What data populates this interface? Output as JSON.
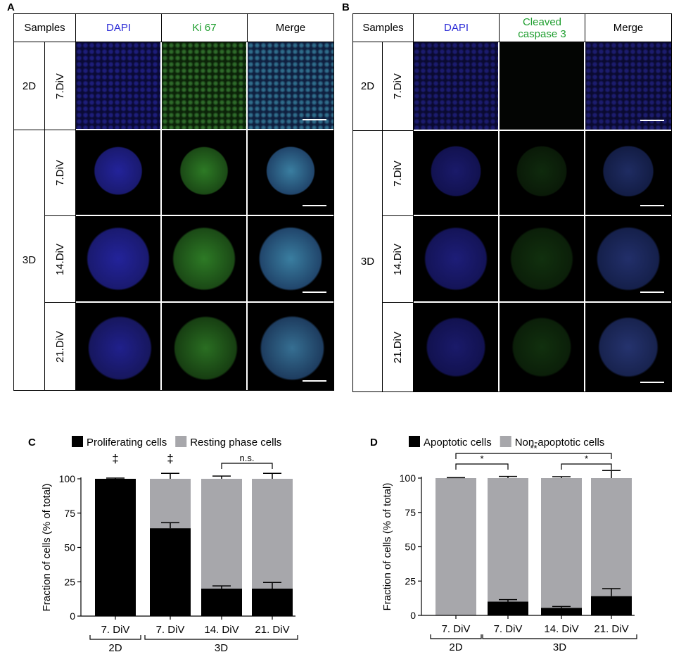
{
  "panelA": {
    "label": "A",
    "headers": {
      "samples": "Samples",
      "dapi": "DAPI",
      "stain": "Ki 67",
      "merge": "Merge"
    },
    "group2d": "2D",
    "group3d": "3D",
    "rows": [
      "7.DiV",
      "7.DiV",
      "14.DiV",
      "21.DiV"
    ]
  },
  "panelB": {
    "label": "B",
    "headers": {
      "samples": "Samples",
      "dapi": "DAPI",
      "stain_line1": "Cleaved",
      "stain_line2": "caspase 3",
      "merge": "Merge"
    },
    "group2d": "2D",
    "group3d": "3D",
    "rows": [
      "7.DiV",
      "7.DiV",
      "14.DiV",
      "21.DiV"
    ]
  },
  "colors": {
    "dapi": "#2b2bd6",
    "ki67": "#1e9e2e",
    "black_bar": "#000000",
    "grey_bar": "#a7a7ab"
  },
  "chart_data": [
    {
      "panel": "C",
      "type": "bar",
      "stacked": true,
      "categories": [
        "7. DiV",
        "7. DiV",
        "14. DiV",
        "21. DiV"
      ],
      "groups": [
        {
          "label": "2D",
          "categories": [
            0
          ]
        },
        {
          "label": "3D",
          "categories": [
            1,
            2,
            3
          ]
        }
      ],
      "series": [
        {
          "name": "Proliferating cells",
          "values": [
            100,
            64,
            20,
            20
          ],
          "errors": [
            0.5,
            4,
            2,
            4.5
          ]
        },
        {
          "name": "Resting phase cells",
          "values": [
            0,
            36,
            80,
            80
          ],
          "errors": [
            0,
            4,
            2,
            4
          ]
        }
      ],
      "ylabel": "Fraction of cells (% of total)",
      "ylim": [
        0,
        100
      ],
      "yticks": [
        "0",
        "25",
        "50",
        "75",
        "100"
      ],
      "annotations": [
        {
          "text": "‡",
          "category": 0
        },
        {
          "text": "‡",
          "category": 1
        },
        {
          "text": "n.s.",
          "from": 2,
          "to": 3
        }
      ],
      "legend": "top"
    },
    {
      "panel": "D",
      "type": "bar",
      "stacked": true,
      "categories": [
        "7. DiV",
        "7. DiV",
        "14. DiV",
        "21. DiV"
      ],
      "groups": [
        {
          "label": "2D",
          "categories": [
            0
          ]
        },
        {
          "label": "3D",
          "categories": [
            1,
            2,
            3
          ]
        }
      ],
      "series": [
        {
          "name": "Apoptotic cells",
          "values": [
            0,
            10,
            5.5,
            14
          ],
          "errors": [
            0,
            1.5,
            1,
            5.5
          ]
        },
        {
          "name": "Non-apoptotic cells",
          "values": [
            100,
            90,
            94.5,
            86
          ],
          "errors": [
            0.3,
            1.2,
            1,
            5.5
          ]
        }
      ],
      "ylabel": "Fraction of cells (% of total)",
      "ylim": [
        0,
        100
      ],
      "yticks": [
        "0",
        "25",
        "50",
        "75",
        "100"
      ],
      "annotations": [
        {
          "text": "*",
          "from": 0,
          "to": 1
        },
        {
          "text": "**",
          "from": 0,
          "to": 3
        },
        {
          "text": "*",
          "from": 2,
          "to": 3
        }
      ],
      "legend": "top"
    }
  ]
}
